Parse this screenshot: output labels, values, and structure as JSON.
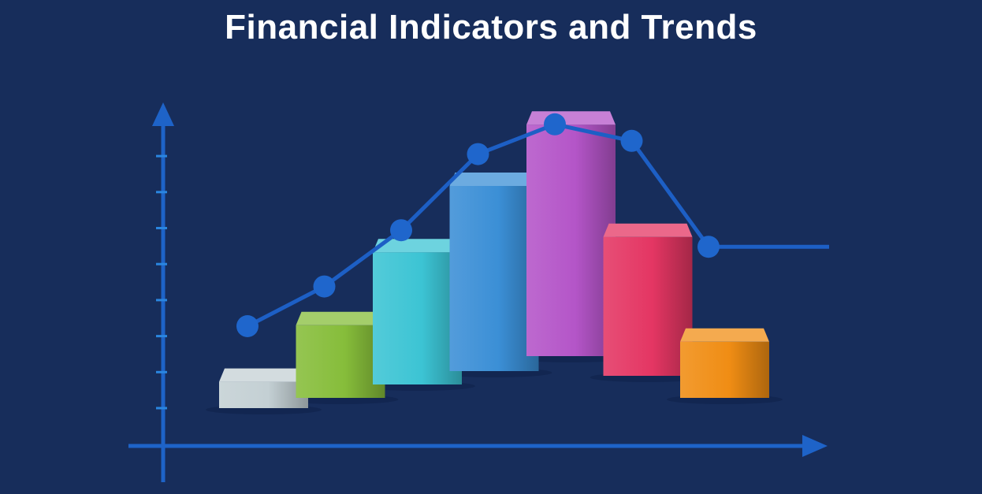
{
  "title": "Financial Indicators and Trends",
  "colors": {
    "background": "#172d5b",
    "axis": "#1e63c8",
    "tick": "#2a86e0",
    "line": "#1d5fc5",
    "marker": "#1f66cc"
  },
  "chart_data": {
    "type": "bar",
    "title": "Financial Indicators and Trends",
    "xlabel": "",
    "ylabel": "",
    "grid": false,
    "ylim": [
      0,
      10
    ],
    "y_ticks_unlabeled": 8,
    "bars": [
      {
        "value": 1.2,
        "color": "#c4d0d4"
      },
      {
        "value": 2.6,
        "color": "#86bd3a"
      },
      {
        "value": 4.4,
        "color": "#3cc4d4"
      },
      {
        "value": 6.0,
        "color": "#3b8fd6"
      },
      {
        "value": 7.4,
        "color": "#b455c8"
      },
      {
        "value": 4.6,
        "color": "#e43663"
      },
      {
        "value": 2.1,
        "color": "#f08d14"
      }
    ],
    "series": [
      {
        "type": "line",
        "values": [
          3.0,
          4.2,
          5.9,
          8.2,
          9.1,
          8.6,
          5.4
        ],
        "tail_value": 5.4
      }
    ]
  }
}
